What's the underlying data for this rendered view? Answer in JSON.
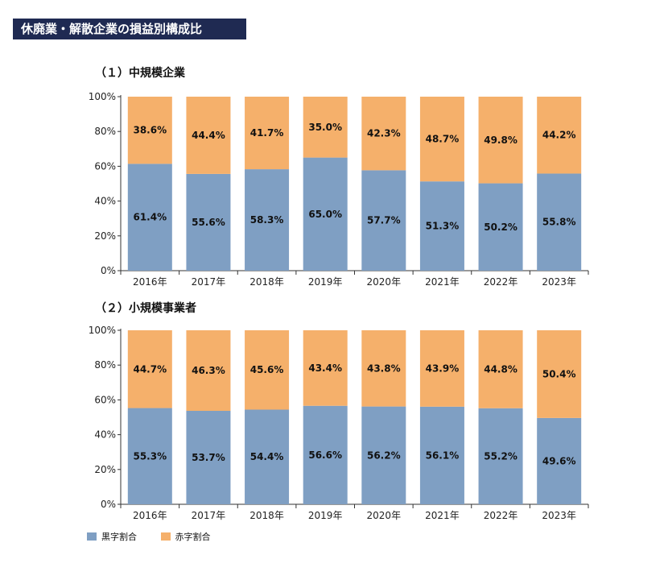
{
  "header": {
    "title": "休廃業・解散企業の損益別構成比"
  },
  "colors": {
    "profit": "#7f9fc3",
    "loss": "#f5b06b",
    "banner": "#1f2a52"
  },
  "legend": {
    "profit_label": "黒字割合",
    "loss_label": "赤字割合"
  },
  "chart_data": [
    {
      "type": "bar",
      "stacked": true,
      "title": "（１）中規模企業",
      "categories": [
        "2016年",
        "2017年",
        "2018年",
        "2019年",
        "2020年",
        "2021年",
        "2022年",
        "2023年"
      ],
      "yticks": [
        "0%",
        "20%",
        "40%",
        "60%",
        "80%",
        "100%"
      ],
      "ylim": [
        0,
        100
      ],
      "series": [
        {
          "name": "黒字割合",
          "values": [
            61.4,
            55.6,
            58.3,
            65.0,
            57.7,
            51.3,
            50.2,
            55.8
          ],
          "labels": [
            "61.4%",
            "55.6%",
            "58.3%",
            "65.0%",
            "57.7%",
            "51.3%",
            "50.2%",
            "55.8%"
          ]
        },
        {
          "name": "赤字割合",
          "values": [
            38.6,
            44.4,
            41.7,
            35.0,
            42.3,
            48.7,
            49.8,
            44.2
          ],
          "labels": [
            "38.6%",
            "44.4%",
            "41.7%",
            "35.0%",
            "42.3%",
            "48.7%",
            "49.8%",
            "44.2%"
          ]
        }
      ]
    },
    {
      "type": "bar",
      "stacked": true,
      "title": "（２）小規模事業者",
      "categories": [
        "2016年",
        "2017年",
        "2018年",
        "2019年",
        "2020年",
        "2021年",
        "2022年",
        "2023年"
      ],
      "yticks": [
        "0%",
        "20%",
        "40%",
        "60%",
        "80%",
        "100%"
      ],
      "ylim": [
        0,
        100
      ],
      "series": [
        {
          "name": "黒字割合",
          "values": [
            55.3,
            53.7,
            54.4,
            56.6,
            56.2,
            56.1,
            55.2,
            49.6
          ],
          "labels": [
            "55.3%",
            "53.7%",
            "54.4%",
            "56.6%",
            "56.2%",
            "56.1%",
            "55.2%",
            "49.6%"
          ]
        },
        {
          "name": "赤字割合",
          "values": [
            44.7,
            46.3,
            45.6,
            43.4,
            43.8,
            43.9,
            44.8,
            50.4
          ],
          "labels": [
            "44.7%",
            "46.3%",
            "45.6%",
            "43.4%",
            "43.8%",
            "43.9%",
            "44.8%",
            "50.4%"
          ]
        }
      ]
    }
  ]
}
